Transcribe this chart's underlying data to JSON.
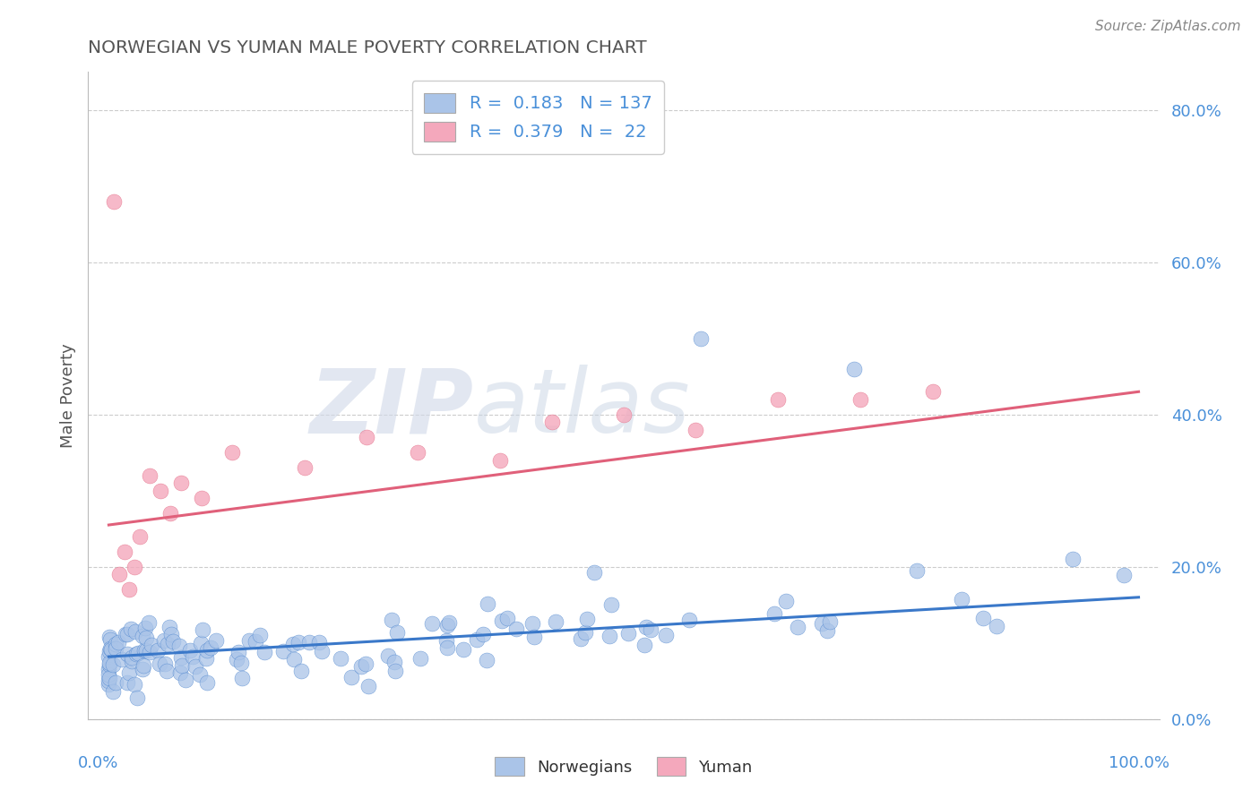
{
  "title": "NORWEGIAN VS YUMAN MALE POVERTY CORRELATION CHART",
  "source": "Source: ZipAtlas.com",
  "ylabel": "Male Poverty",
  "xlim": [
    0,
    1
  ],
  "ylim": [
    0,
    0.85
  ],
  "ytick_vals": [
    0.0,
    0.2,
    0.4,
    0.6,
    0.8
  ],
  "ytick_labels": [
    "0.0%",
    "20.0%",
    "40.0%",
    "60.0%",
    "80.0%"
  ],
  "norwegian_R": 0.183,
  "norwegian_N": 137,
  "yuman_R": 0.379,
  "yuman_N": 22,
  "norwegian_color": "#aac4e8",
  "yuman_color": "#f4a8bc",
  "trend_norwegian_color": "#3a78c9",
  "trend_yuman_color": "#e0607a",
  "background_color": "#ffffff",
  "watermark_zip": "ZIP",
  "watermark_atlas": "atlas",
  "title_color": "#555555",
  "tick_label_color": "#4a90d9",
  "axis_label_color": "#555555",
  "grid_color": "#cccccc",
  "nor_trend_y0": 0.082,
  "nor_trend_y1": 0.16,
  "yum_trend_y0": 0.255,
  "yum_trend_y1": 0.43,
  "source_color": "#888888"
}
